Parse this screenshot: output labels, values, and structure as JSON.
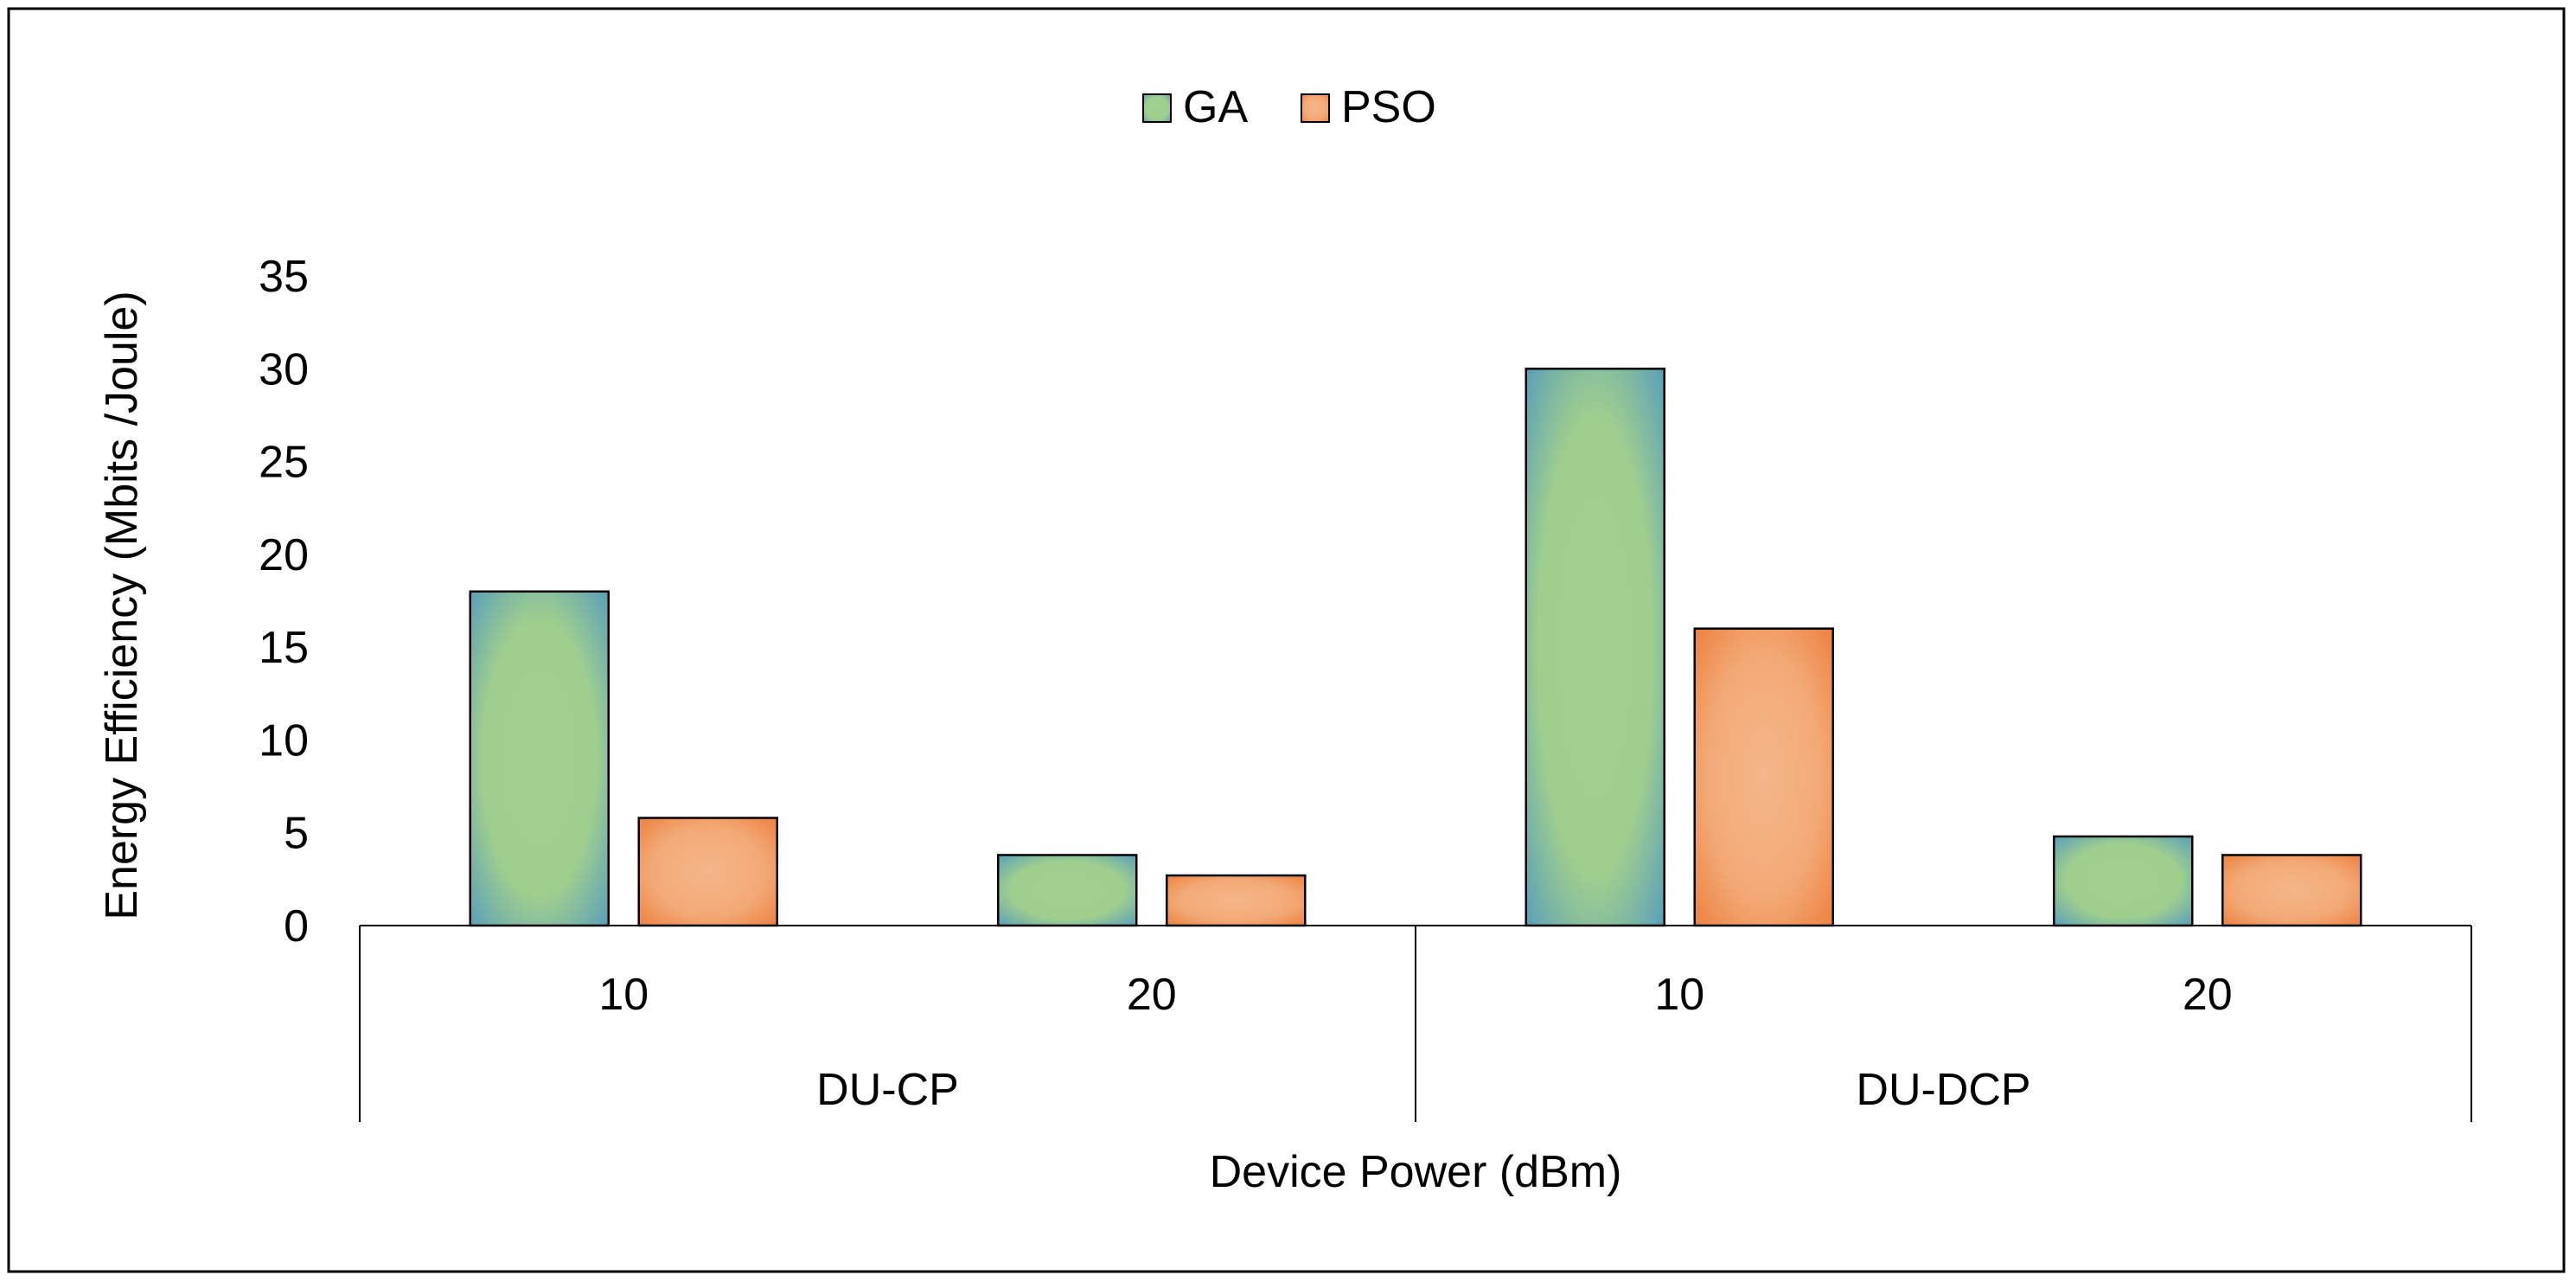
{
  "chart_data": {
    "type": "bar",
    "title": "",
    "legend": {
      "position": "top",
      "entries": [
        "GA",
        "PSO"
      ]
    },
    "groups": [
      {
        "label": "DU-CP",
        "categories": [
          "10",
          "20"
        ]
      },
      {
        "label": "DU-DCP",
        "categories": [
          "10",
          "20"
        ]
      }
    ],
    "series": [
      {
        "name": "GA",
        "values": [
          18,
          3.8,
          30,
          4.8
        ],
        "color_center": "#a3d08e",
        "color_edge": "#4f97bf"
      },
      {
        "name": "PSO",
        "values": [
          5.8,
          2.7,
          16,
          3.8
        ],
        "color_center": "#f5b68a",
        "color_edge": "#ec7a38"
      }
    ],
    "xlabel": "Device Power (dBm)",
    "ylabel": "Energy Efficiency (Mbits /Joule)",
    "ylim": [
      0,
      35
    ],
    "yticks": [
      0,
      5,
      10,
      15,
      20,
      25,
      30,
      35
    ],
    "grid": false
  }
}
